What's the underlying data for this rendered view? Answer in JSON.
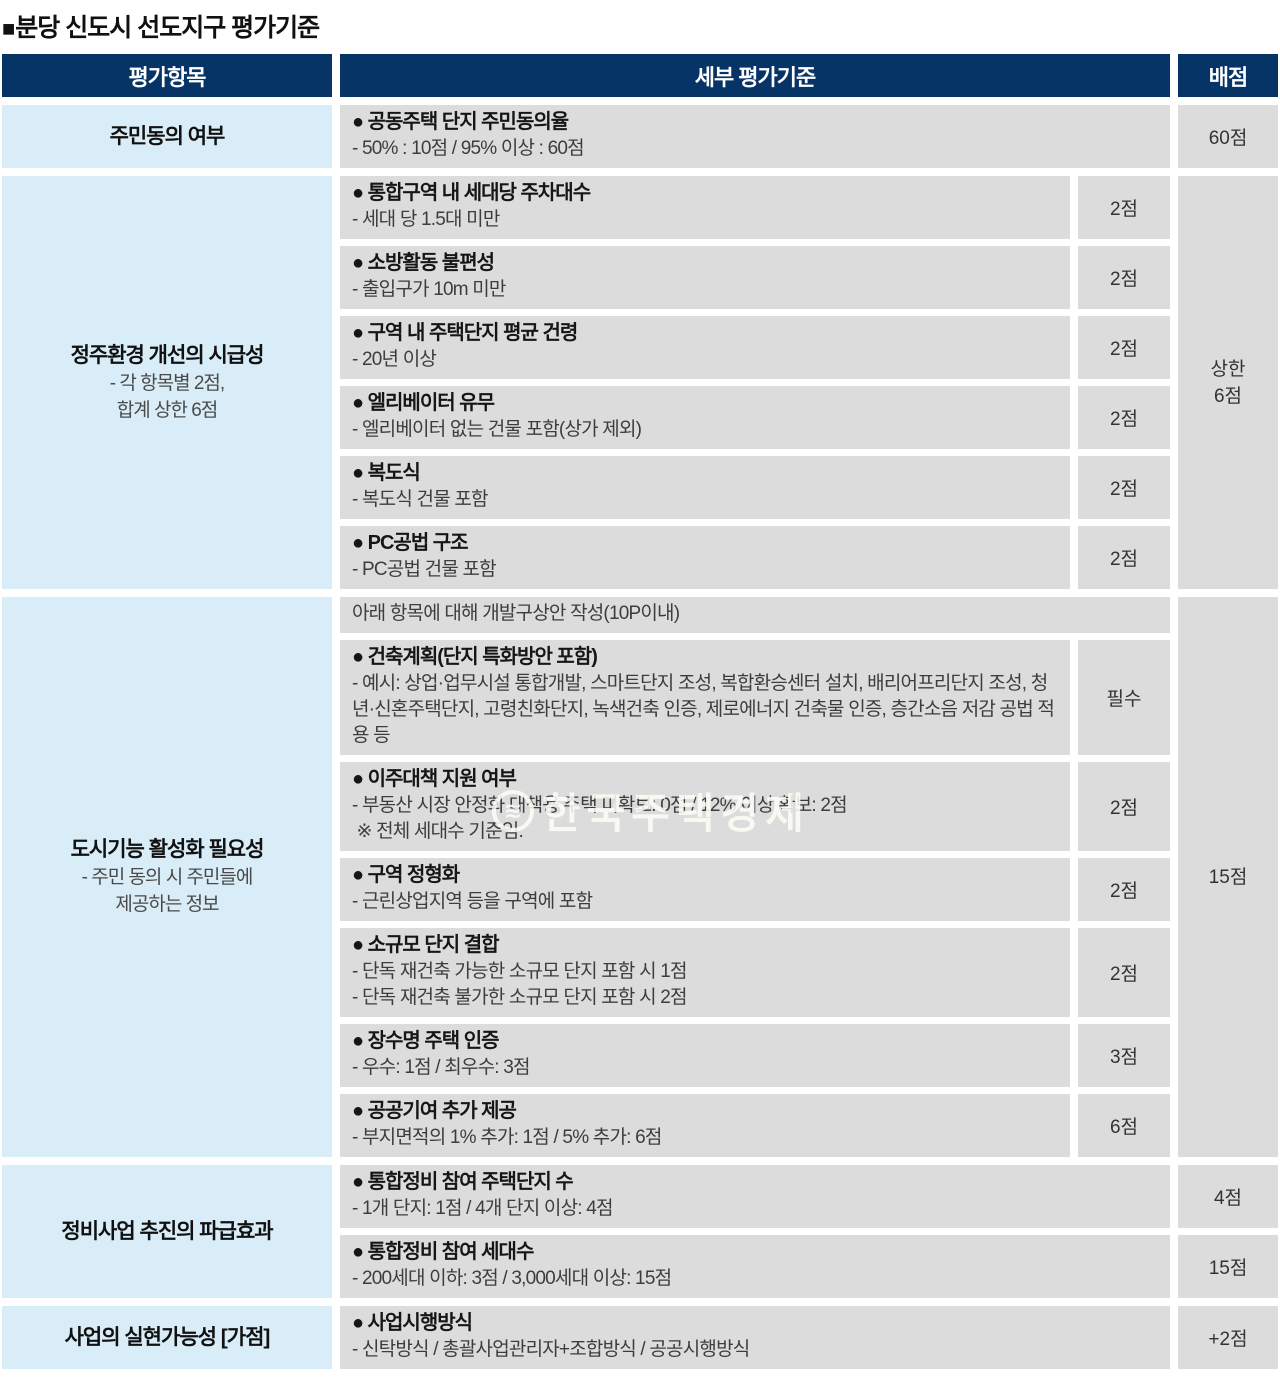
{
  "page_title": {
    "bullet": "■",
    "text": "분당 신도시 선도지구 평가기준"
  },
  "colors": {
    "header_bg": "#073466",
    "header_text": "#ffffff",
    "category_bg": "#d9edf8",
    "cell_bg": "#dcdcdc"
  },
  "watermark": {
    "text": "한국주택경제",
    "logo": "≋"
  },
  "table": {
    "headers": {
      "category": "평가항목",
      "criteria": "세부 평가기준",
      "score": "배점"
    },
    "sections": [
      {
        "id": "resident-consent",
        "category": {
          "title": "주민동의 여부",
          "subs": []
        },
        "rows": [
          {
            "head": "● 공동주택 단지 주민동의율",
            "lines": [
              "- 50% : 10점 / 95% 이상 : 60점"
            ],
            "subpoint": null,
            "score": "60점"
          }
        ],
        "section_score": null
      },
      {
        "id": "settlement-improvement",
        "category": {
          "title": "정주환경 개선의 시급성",
          "subs": [
            "- 각 항목별 2점,",
            "합계 상한 6점"
          ]
        },
        "rows": [
          {
            "head": "● 통합구역 내 세대당 주차대수",
            "lines": [
              "- 세대 당 1.5대 미만"
            ],
            "subpoint": "2점",
            "score": null
          },
          {
            "head": "● 소방활동 불편성",
            "lines": [
              "- 출입구가 10m 미만"
            ],
            "subpoint": "2점",
            "score": null
          },
          {
            "head": "● 구역 내 주택단지 평균 건령",
            "lines": [
              "- 20년 이상"
            ],
            "subpoint": "2점",
            "score": null
          },
          {
            "head": "● 엘리베이터 유무",
            "lines": [
              "- 엘리베이터 없는 건물 포함(상가 제외)"
            ],
            "subpoint": "2점",
            "score": null
          },
          {
            "head": "● 복도식",
            "lines": [
              "- 복도식 건물 포함"
            ],
            "subpoint": "2점",
            "score": null
          },
          {
            "head": "● PC공법 구조",
            "lines": [
              "- PC공법 건물 포함"
            ],
            "subpoint": "2점",
            "score": null
          }
        ],
        "section_score": [
          "상한",
          "6점"
        ]
      },
      {
        "id": "urban-function",
        "category": {
          "title": "도시기능 활성화 필요성",
          "subs": [
            "- 주민 동의 시 주민들에",
            "제공하는 정보"
          ]
        },
        "rows": [
          {
            "head": null,
            "lines": [
              "아래 항목에 대해 개발구상안 작성(10P이내)"
            ],
            "subpoint": null,
            "score": null
          },
          {
            "head": "● 건축계획(단지 특화방안 포함)",
            "lines": [
              "- 예시: 상업·업무시설 통합개발, 스마트단지 조성, 복합환승센터 설치, 배리어프리단지 조성, 청년·신혼주택단지, 고령친화단지, 녹색건축 인증, 제로에너지 건축물 인증, 층간소음 저감 공법 적용 등"
            ],
            "subpoint": "필수",
            "score": null
          },
          {
            "head": "● 이주대책 지원 여부",
            "lines": [
              "- 부동산 시장 안정화 대책용 주택 미확보: 0점 / 12% 이상 확보: 2점",
              " ※ 전체 세대수 기준임."
            ],
            "subpoint": "2점",
            "score": null
          },
          {
            "head": "● 구역 정형화",
            "lines": [
              "- 근린상업지역 등을 구역에 포함"
            ],
            "subpoint": "2점",
            "score": null
          },
          {
            "head": "● 소규모 단지 결합",
            "lines": [
              "- 단독 재건축 가능한 소규모 단지 포함 시 1점",
              "- 단독 재건축 불가한 소규모 단지 포함 시 2점"
            ],
            "subpoint": "2점",
            "score": null
          },
          {
            "head": "● 장수명 주택 인증",
            "lines": [
              "- 우수: 1점 / 최우수: 3점"
            ],
            "subpoint": "3점",
            "score": null
          },
          {
            "head": "● 공공기여 추가 제공",
            "lines": [
              "- 부지면적의 1% 추가: 1점 / 5% 추가: 6점"
            ],
            "subpoint": "6점",
            "score": null
          }
        ],
        "section_score": [
          "15점"
        ]
      },
      {
        "id": "ripple-effect",
        "category": {
          "title": "정비사업 추진의 파급효과",
          "subs": []
        },
        "rows": [
          {
            "head": "● 통합정비 참여 주택단지 수",
            "lines": [
              "- 1개 단지: 1점 / 4개 단지 이상: 4점"
            ],
            "subpoint": null,
            "score": "4점"
          },
          {
            "head": "● 통합정비 참여 세대수",
            "lines": [
              "- 200세대 이하: 3점 / 3,000세대 이상: 15점"
            ],
            "subpoint": null,
            "score": "15점"
          }
        ],
        "section_score": null
      },
      {
        "id": "feasibility",
        "category": {
          "title": "사업의 실현가능성 [가점]",
          "subs": []
        },
        "rows": [
          {
            "head": "● 사업시행방식",
            "lines": [
              "- 신탁방식 / 총괄사업관리자+조합방식 / 공공시행방식"
            ],
            "subpoint": null,
            "score": "+2점"
          }
        ],
        "section_score": null
      }
    ]
  }
}
